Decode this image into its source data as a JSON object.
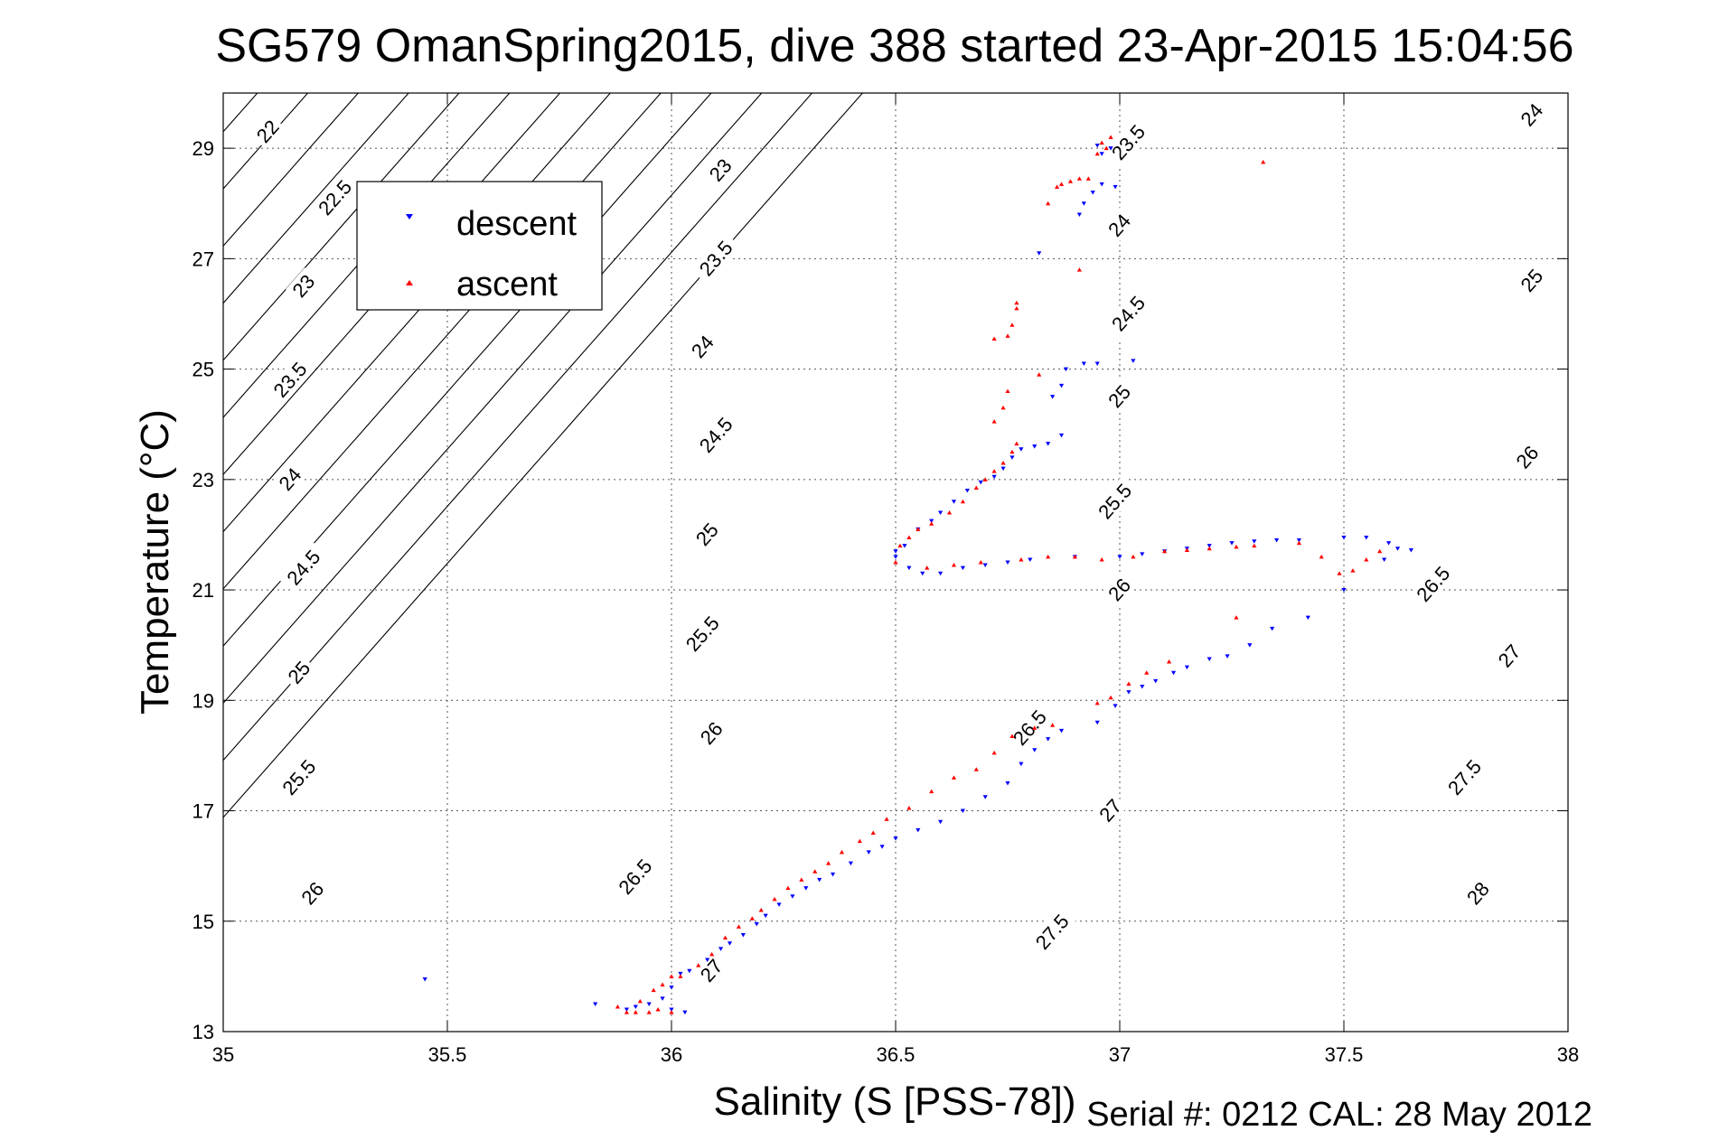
{
  "chart_data": {
    "type": "scatter",
    "title": "SG579 OmanSpring2015, dive 388 started 23-Apr-2015 15:04:56",
    "xlabel": "Salinity (S [PSS-78])",
    "ylabel": "Temperature (°C)",
    "footer": "Serial #: 0212  CAL: 28 May 2012",
    "xlim": [
      35,
      38
    ],
    "ylim": [
      13,
      30
    ],
    "xticks": [
      "35",
      "35.5",
      "36",
      "36.5",
      "37",
      "37.5",
      "38"
    ],
    "yticks": [
      "13",
      "15",
      "17",
      "19",
      "21",
      "23",
      "25",
      "27",
      "29"
    ],
    "grid": true,
    "legend": {
      "placement": "top-left",
      "entries": [
        "descent",
        "ascent"
      ]
    },
    "isopycnals": {
      "levels": [
        22,
        22.5,
        23,
        23.5,
        24,
        24.5,
        25,
        25.5,
        26,
        26.5,
        27,
        27.5,
        28
      ],
      "labels": [
        {
          "text": "22",
          "s": 35.1,
          "t": 29.3
        },
        {
          "text": "22.5",
          "s": 35.25,
          "t": 28.1
        },
        {
          "text": "23",
          "s": 35.18,
          "t": 26.5
        },
        {
          "text": "23.5",
          "s": 35.15,
          "t": 24.8
        },
        {
          "text": "24",
          "s": 35.15,
          "t": 23.0
        },
        {
          "text": "24.5",
          "s": 35.18,
          "t": 21.4
        },
        {
          "text": "25",
          "s": 35.17,
          "t": 19.5
        },
        {
          "text": "25.5",
          "s": 35.17,
          "t": 17.6
        },
        {
          "text": "26",
          "s": 35.2,
          "t": 15.5
        },
        {
          "text": "23",
          "s": 36.11,
          "t": 28.6
        },
        {
          "text": "23.5",
          "s": 36.1,
          "t": 27.0
        },
        {
          "text": "24",
          "s": 36.07,
          "t": 25.4
        },
        {
          "text": "24.5",
          "s": 36.1,
          "t": 23.8
        },
        {
          "text": "25",
          "s": 36.08,
          "t": 22.0
        },
        {
          "text": "25.5",
          "s": 36.07,
          "t": 20.2
        },
        {
          "text": "26",
          "s": 36.09,
          "t": 18.4
        },
        {
          "text": "26.5",
          "s": 35.92,
          "t": 15.8
        },
        {
          "text": "27",
          "s": 36.09,
          "t": 14.1
        },
        {
          "text": "23.5",
          "s": 37.02,
          "t": 29.1
        },
        {
          "text": "24",
          "s": 37.0,
          "t": 27.6
        },
        {
          "text": "24.5",
          "s": 37.02,
          "t": 26.0
        },
        {
          "text": "25",
          "s": 37.0,
          "t": 24.5
        },
        {
          "text": "25.5",
          "s": 36.99,
          "t": 22.6
        },
        {
          "text": "26",
          "s": 37.0,
          "t": 21.0
        },
        {
          "text": "26.5",
          "s": 36.8,
          "t": 18.5
        },
        {
          "text": "27",
          "s": 36.98,
          "t": 17.0
        },
        {
          "text": "27.5",
          "s": 36.85,
          "t": 14.8
        },
        {
          "text": "24",
          "s": 37.92,
          "t": 29.6
        },
        {
          "text": "25",
          "s": 37.92,
          "t": 26.6
        },
        {
          "text": "26",
          "s": 37.91,
          "t": 23.4
        },
        {
          "text": "26.5",
          "s": 37.7,
          "t": 21.1
        },
        {
          "text": "27",
          "s": 37.87,
          "t": 19.8
        },
        {
          "text": "27.5",
          "s": 37.77,
          "t": 17.6
        },
        {
          "text": "28",
          "s": 37.8,
          "t": 15.5
        }
      ]
    },
    "series": [
      {
        "name": "descent",
        "marker": "triangle-down",
        "color": "#0000ff",
        "points": [
          [
            35.45,
            13.95
          ],
          [
            35.83,
            13.5
          ],
          [
            35.9,
            13.4
          ],
          [
            35.92,
            13.45
          ],
          [
            35.95,
            13.5
          ],
          [
            35.98,
            13.6
          ],
          [
            36.0,
            13.8
          ],
          [
            36.02,
            14.05
          ],
          [
            36.04,
            14.1
          ],
          [
            36.03,
            13.35
          ],
          [
            36.0,
            13.4
          ],
          [
            36.08,
            14.3
          ],
          [
            36.11,
            14.5
          ],
          [
            36.13,
            14.6
          ],
          [
            36.16,
            14.75
          ],
          [
            36.19,
            14.95
          ],
          [
            36.21,
            15.1
          ],
          [
            36.24,
            15.3
          ],
          [
            36.27,
            15.45
          ],
          [
            36.3,
            15.6
          ],
          [
            36.33,
            15.75
          ],
          [
            36.36,
            15.85
          ],
          [
            36.4,
            16.05
          ],
          [
            36.44,
            16.25
          ],
          [
            36.47,
            16.35
          ],
          [
            36.5,
            16.5
          ],
          [
            36.55,
            16.65
          ],
          [
            36.6,
            16.8
          ],
          [
            36.65,
            17.0
          ],
          [
            36.7,
            17.25
          ],
          [
            36.75,
            17.5
          ],
          [
            36.78,
            17.85
          ],
          [
            36.81,
            18.1
          ],
          [
            36.84,
            18.3
          ],
          [
            36.87,
            18.45
          ],
          [
            36.95,
            18.6
          ],
          [
            36.99,
            18.9
          ],
          [
            37.02,
            19.15
          ],
          [
            37.05,
            19.25
          ],
          [
            37.08,
            19.35
          ],
          [
            37.12,
            19.5
          ],
          [
            37.15,
            19.6
          ],
          [
            37.2,
            19.75
          ],
          [
            37.24,
            19.8
          ],
          [
            37.29,
            20.0
          ],
          [
            37.34,
            20.3
          ],
          [
            37.42,
            20.5
          ],
          [
            36.5,
            21.6
          ],
          [
            36.5,
            21.7
          ],
          [
            36.52,
            21.8
          ],
          [
            36.53,
            21.4
          ],
          [
            36.56,
            21.3
          ],
          [
            36.6,
            21.3
          ],
          [
            36.65,
            21.4
          ],
          [
            36.7,
            21.45
          ],
          [
            36.75,
            21.5
          ],
          [
            36.8,
            21.55
          ],
          [
            36.9,
            21.6
          ],
          [
            37.0,
            21.6
          ],
          [
            37.05,
            21.65
          ],
          [
            37.1,
            21.7
          ],
          [
            37.15,
            21.75
          ],
          [
            37.2,
            21.8
          ],
          [
            37.25,
            21.85
          ],
          [
            37.3,
            21.88
          ],
          [
            37.35,
            21.9
          ],
          [
            37.4,
            21.9
          ],
          [
            37.5,
            21.95
          ],
          [
            37.55,
            21.95
          ],
          [
            37.6,
            21.85
          ],
          [
            37.62,
            21.75
          ],
          [
            37.65,
            21.72
          ],
          [
            37.59,
            21.55
          ],
          [
            37.5,
            21.0
          ],
          [
            36.55,
            22.1
          ],
          [
            36.58,
            22.25
          ],
          [
            36.6,
            22.4
          ],
          [
            36.63,
            22.6
          ],
          [
            36.66,
            22.8
          ],
          [
            36.69,
            22.95
          ],
          [
            36.72,
            23.05
          ],
          [
            36.74,
            23.2
          ],
          [
            36.76,
            23.4
          ],
          [
            36.78,
            23.55
          ],
          [
            36.81,
            23.6
          ],
          [
            36.84,
            23.65
          ],
          [
            36.87,
            23.8
          ],
          [
            36.85,
            24.5
          ],
          [
            36.87,
            24.7
          ],
          [
            36.88,
            25.0
          ],
          [
            36.92,
            25.1
          ],
          [
            36.95,
            25.1
          ],
          [
            37.03,
            25.15
          ],
          [
            36.82,
            27.1
          ],
          [
            36.91,
            27.8
          ],
          [
            36.92,
            28.0
          ],
          [
            36.94,
            28.2
          ],
          [
            36.96,
            28.35
          ],
          [
            36.99,
            28.3
          ],
          [
            36.96,
            28.9
          ],
          [
            36.98,
            29.0
          ],
          [
            36.95,
            29.05
          ]
        ]
      },
      {
        "name": "ascent",
        "marker": "triangle-up",
        "color": "#ff0000",
        "points": [
          [
            35.88,
            13.45
          ],
          [
            35.9,
            13.35
          ],
          [
            35.92,
            13.35
          ],
          [
            35.95,
            13.35
          ],
          [
            35.97,
            13.4
          ],
          [
            36.0,
            13.35
          ],
          [
            35.93,
            13.55
          ],
          [
            35.96,
            13.75
          ],
          [
            35.98,
            13.85
          ],
          [
            36.0,
            14.0
          ],
          [
            36.02,
            14.0
          ],
          [
            36.06,
            14.2
          ],
          [
            36.09,
            14.4
          ],
          [
            36.12,
            14.7
          ],
          [
            36.15,
            14.9
          ],
          [
            36.18,
            15.05
          ],
          [
            36.2,
            15.2
          ],
          [
            36.23,
            15.4
          ],
          [
            36.26,
            15.6
          ],
          [
            36.29,
            15.75
          ],
          [
            36.32,
            15.9
          ],
          [
            36.35,
            16.05
          ],
          [
            36.38,
            16.25
          ],
          [
            36.42,
            16.45
          ],
          [
            36.45,
            16.6
          ],
          [
            36.48,
            16.85
          ],
          [
            36.53,
            17.05
          ],
          [
            36.58,
            17.35
          ],
          [
            36.63,
            17.6
          ],
          [
            36.68,
            17.75
          ],
          [
            36.72,
            18.05
          ],
          [
            36.76,
            18.35
          ],
          [
            36.81,
            18.5
          ],
          [
            36.85,
            18.55
          ],
          [
            36.95,
            18.95
          ],
          [
            36.98,
            19.05
          ],
          [
            37.02,
            19.3
          ],
          [
            37.06,
            19.5
          ],
          [
            37.11,
            19.7
          ],
          [
            37.26,
            20.5
          ],
          [
            36.5,
            21.5
          ],
          [
            36.51,
            21.8
          ],
          [
            36.53,
            21.95
          ],
          [
            36.55,
            22.1
          ],
          [
            36.58,
            22.2
          ],
          [
            36.62,
            22.4
          ],
          [
            36.65,
            22.6
          ],
          [
            36.68,
            22.85
          ],
          [
            36.7,
            23.0
          ],
          [
            36.72,
            23.15
          ],
          [
            36.74,
            23.3
          ],
          [
            36.76,
            23.5
          ],
          [
            36.77,
            23.65
          ],
          [
            36.57,
            21.4
          ],
          [
            36.63,
            21.45
          ],
          [
            36.69,
            21.5
          ],
          [
            36.78,
            21.55
          ],
          [
            36.84,
            21.6
          ],
          [
            36.9,
            21.6
          ],
          [
            36.96,
            21.55
          ],
          [
            37.03,
            21.6
          ],
          [
            37.1,
            21.7
          ],
          [
            37.15,
            21.72
          ],
          [
            37.2,
            21.75
          ],
          [
            37.26,
            21.78
          ],
          [
            37.3,
            21.8
          ],
          [
            37.4,
            21.85
          ],
          [
            37.45,
            21.6
          ],
          [
            37.49,
            21.3
          ],
          [
            37.52,
            21.35
          ],
          [
            37.55,
            21.55
          ],
          [
            37.58,
            21.7
          ],
          [
            36.72,
            24.05
          ],
          [
            36.74,
            24.3
          ],
          [
            36.75,
            24.6
          ],
          [
            36.82,
            24.9
          ],
          [
            36.72,
            25.55
          ],
          [
            36.75,
            25.6
          ],
          [
            36.76,
            25.8
          ],
          [
            36.77,
            26.1
          ],
          [
            36.77,
            26.2
          ],
          [
            36.84,
            28.0
          ],
          [
            36.86,
            28.3
          ],
          [
            36.87,
            28.35
          ],
          [
            36.89,
            28.4
          ],
          [
            36.91,
            28.45
          ],
          [
            36.93,
            28.45
          ],
          [
            36.95,
            28.9
          ],
          [
            36.97,
            29.0
          ],
          [
            36.96,
            29.1
          ],
          [
            36.98,
            29.2
          ],
          [
            37.32,
            28.75
          ],
          [
            36.91,
            26.8
          ]
        ]
      }
    ]
  }
}
